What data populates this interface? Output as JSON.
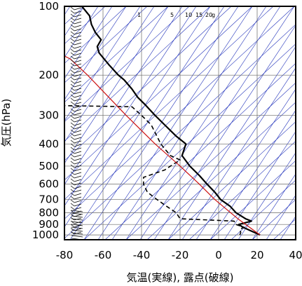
{
  "chart_data": {
    "type": "line",
    "title": "",
    "xlabel": "気温(実線), 露点(破線)",
    "ylabel": "気圧(hPa)",
    "xlim": [
      -80,
      40
    ],
    "ylim": [
      1050,
      100
    ],
    "y_scale": "log",
    "x_ticks": [
      "-80",
      "-60",
      "-40",
      "-20",
      "0",
      "20",
      "40"
    ],
    "y_ticks": [
      "100",
      "200",
      "300",
      "400",
      "500",
      "600",
      "700",
      "800",
      "900",
      "1000"
    ],
    "mixing_ratio_labels": [
      "1",
      "5",
      "10",
      "15",
      "20",
      "g"
    ],
    "grid": true,
    "colors": {
      "temperature": "#000000",
      "dewpoint": "#000000",
      "parcel": "#cc1111",
      "guides": "#2233bb",
      "wind": "#000000"
    },
    "series": [
      {
        "style": "solid",
        "points": [
          {
            "p": 1000,
            "t": 21.5
          },
          {
            "p": 975,
            "t": 18.5
          },
          {
            "p": 950,
            "t": 15.5
          },
          {
            "p": 925,
            "t": 12.5
          },
          {
            "p": 900,
            "t": 10.5
          },
          {
            "p": 870,
            "t": 17
          },
          {
            "p": 850,
            "t": 14
          },
          {
            "p": 800,
            "t": 9
          },
          {
            "p": 750,
            "t": 6
          },
          {
            "p": 700,
            "t": 1
          },
          {
            "p": 650,
            "t": -2
          },
          {
            "p": 600,
            "t": -6
          },
          {
            "p": 550,
            "t": -10
          },
          {
            "p": 500,
            "t": -15
          },
          {
            "p": 450,
            "t": -19
          },
          {
            "p": 400,
            "t": -17
          },
          {
            "p": 370,
            "t": -22
          },
          {
            "p": 330,
            "t": -28
          },
          {
            "p": 300,
            "t": -33
          },
          {
            "p": 270,
            "t": -38
          },
          {
            "p": 250,
            "t": -42
          },
          {
            "p": 230,
            "t": -45
          },
          {
            "p": 210,
            "t": -49
          },
          {
            "p": 200,
            "t": -52
          },
          {
            "p": 180,
            "t": -57
          },
          {
            "p": 160,
            "t": -62
          },
          {
            "p": 150,
            "t": -63
          },
          {
            "p": 140,
            "t": -61
          },
          {
            "p": 130,
            "t": -64
          },
          {
            "p": 120,
            "t": -66
          },
          {
            "p": 110,
            "t": -67
          },
          {
            "p": 100,
            "t": -71
          }
        ]
      },
      {
        "style": "dashed",
        "points": [
          {
            "p": 1000,
            "t": 11
          },
          {
            "p": 975,
            "t": 11.5
          },
          {
            "p": 950,
            "t": 11
          },
          {
            "p": 925,
            "t": 13
          },
          {
            "p": 900,
            "t": 9
          },
          {
            "p": 870,
            "t": 8
          },
          {
            "p": 850,
            "t": -20
          },
          {
            "p": 800,
            "t": -22
          },
          {
            "p": 750,
            "t": -27
          },
          {
            "p": 700,
            "t": -32
          },
          {
            "p": 650,
            "t": -37
          },
          {
            "p": 600,
            "t": -39
          },
          {
            "p": 560,
            "t": -39
          },
          {
            "p": 520,
            "t": -28
          },
          {
            "p": 500,
            "t": -25
          },
          {
            "p": 470,
            "t": -20
          },
          {
            "p": 450,
            "t": -25
          },
          {
            "p": 420,
            "t": -28
          },
          {
            "p": 400,
            "t": -30
          },
          {
            "p": 330,
            "t": -35
          },
          {
            "p": 300,
            "t": -40
          },
          {
            "p": 275,
            "t": -45
          },
          {
            "p": 272,
            "t": -80
          }
        ]
      },
      {
        "style": "solid",
        "points": [
          {
            "p": 1000,
            "t": 21.5
          },
          {
            "p": 850,
            "t": 10
          },
          {
            "p": 700,
            "t": -2
          },
          {
            "p": 600,
            "t": -10
          },
          {
            "p": 500,
            "t": -20
          },
          {
            "p": 400,
            "t": -33
          },
          {
            "p": 300,
            "t": -48
          },
          {
            "p": 250,
            "t": -57
          },
          {
            "p": 200,
            "t": -68
          },
          {
            "p": 170,
            "t": -77
          },
          {
            "p": 165,
            "t": -80
          }
        ]
      }
    ]
  }
}
